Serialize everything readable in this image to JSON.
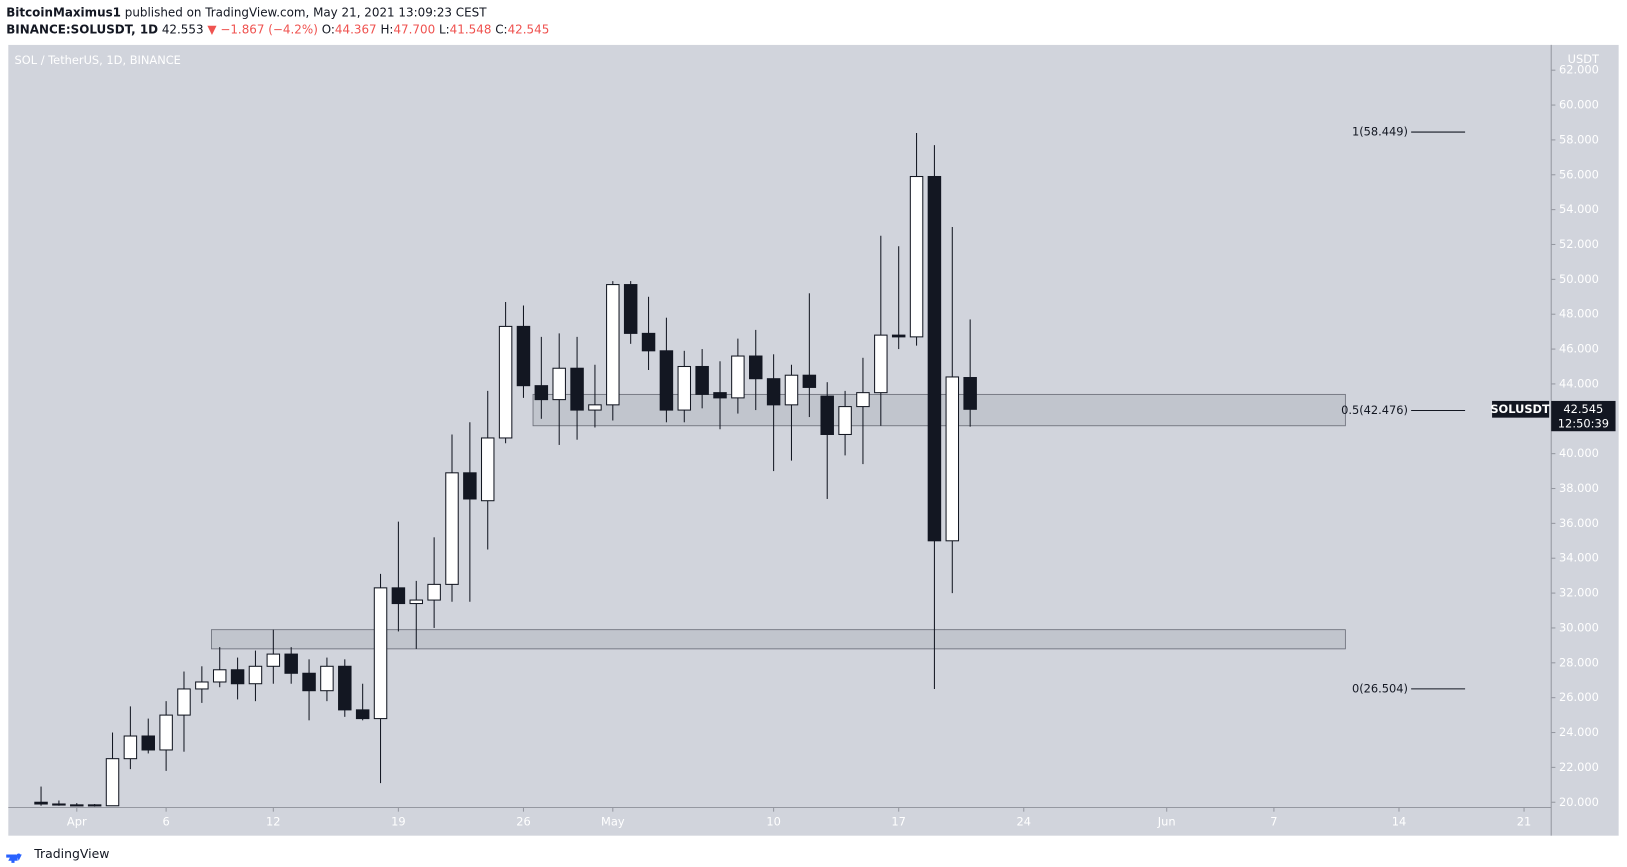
{
  "header": {
    "author": "BitcoinMaximus1",
    "published": "published on TradingView.com, May 21, 2021 13:09:23 CEST",
    "symbol": "BINANCE:SOLUSDT, 1D",
    "last": "42.553",
    "change": "▼ −1.867 (−4.2%)",
    "o_label": "O:",
    "o": "44.367",
    "h_label": "H:",
    "h": "47.700",
    "l_label": "L:",
    "l": "41.548",
    "c_label": "C:",
    "c": "42.545"
  },
  "footer": {
    "brand": "TradingView"
  },
  "chart_data": {
    "type": "candlestick",
    "title": "SOL / TetherUS, 1D, BINANCE",
    "y_axis_label": "USDT",
    "x": [
      "Mar 30",
      "Mar 31",
      "Apr 1",
      "Apr 2",
      "Apr 3",
      "Apr 4",
      "Apr 5",
      "Apr 6",
      "Apr 7",
      "Apr 8",
      "Apr 9",
      "Apr 10",
      "Apr 11",
      "Apr 12",
      "Apr 13",
      "Apr 14",
      "Apr 15",
      "Apr 16",
      "Apr 17",
      "Apr 18",
      "Apr 19",
      "Apr 20",
      "Apr 21",
      "Apr 22",
      "Apr 23",
      "Apr 24",
      "Apr 25",
      "Apr 26",
      "Apr 27",
      "Apr 28",
      "Apr 29",
      "Apr 30",
      "May 1",
      "May 2",
      "May 3",
      "May 4",
      "May 5",
      "May 6",
      "May 7",
      "May 8",
      "May 9",
      "May 10",
      "May 11",
      "May 12",
      "May 13",
      "May 14",
      "May 15",
      "May 16",
      "May 17",
      "May 18",
      "May 19",
      "May 20",
      "May 21"
    ],
    "open": [
      20.0,
      19.9,
      19.85,
      19.8,
      19.8,
      22.5,
      23.8,
      23.0,
      25.0,
      26.5,
      26.9,
      27.6,
      26.8,
      27.8,
      28.5,
      27.4,
      26.4,
      27.8,
      25.3,
      24.8,
      32.3,
      31.4,
      31.6,
      32.5,
      38.9,
      37.3,
      40.9,
      47.3,
      43.9,
      43.1,
      44.9,
      42.5,
      42.8,
      49.7,
      46.9,
      45.9,
      42.5,
      45.0,
      43.5,
      43.2,
      45.6,
      44.3,
      42.8,
      44.5,
      43.3,
      41.1,
      42.7,
      43.5,
      46.8,
      46.7,
      55.9,
      35.0,
      44.367
    ],
    "high": [
      20.9,
      20.1,
      19.95,
      19.9,
      24.0,
      25.5,
      24.8,
      25.8,
      27.5,
      27.8,
      28.9,
      28.3,
      28.7,
      29.9,
      28.9,
      28.2,
      28.3,
      28.2,
      26.8,
      33.1,
      36.1,
      32.7,
      35.2,
      41.1,
      41.8,
      43.6,
      48.7,
      48.5,
      46.7,
      46.9,
      46.7,
      45.1,
      49.9,
      49.9,
      49.0,
      47.8,
      45.9,
      46.0,
      45.3,
      46.6,
      47.1,
      45.7,
      45.1,
      49.2,
      44.1,
      43.6,
      45.5,
      52.5,
      51.9,
      58.4,
      57.7,
      53.0,
      47.7
    ],
    "low": [
      19.8,
      19.8,
      19.8,
      19.75,
      19.8,
      21.9,
      22.8,
      21.8,
      22.9,
      25.7,
      26.6,
      25.9,
      25.8,
      26.8,
      26.8,
      24.7,
      25.8,
      24.9,
      24.7,
      21.1,
      29.8,
      28.8,
      30.0,
      31.5,
      31.5,
      34.5,
      40.6,
      43.2,
      42.0,
      40.5,
      40.8,
      41.5,
      41.9,
      46.3,
      44.8,
      41.8,
      41.8,
      42.6,
      41.4,
      42.3,
      42.5,
      39.0,
      39.6,
      42.1,
      37.4,
      39.9,
      39.4,
      41.6,
      46.0,
      46.2,
      26.5,
      32.0,
      41.548
    ],
    "close": [
      19.9,
      19.9,
      19.85,
      19.85,
      22.5,
      23.8,
      23.0,
      25.0,
      26.5,
      26.9,
      27.6,
      26.8,
      27.8,
      28.5,
      27.4,
      26.4,
      27.8,
      25.3,
      24.8,
      32.3,
      31.4,
      31.6,
      32.5,
      38.9,
      37.4,
      40.9,
      47.3,
      43.9,
      43.1,
      44.9,
      42.5,
      42.8,
      49.7,
      46.9,
      45.9,
      42.5,
      45.0,
      43.4,
      43.2,
      45.6,
      44.3,
      42.8,
      44.5,
      43.8,
      41.1,
      42.7,
      43.5,
      46.8,
      46.7,
      55.9,
      35.0,
      44.4,
      42.545
    ],
    "up_color": "#ffffff",
    "down_color": "#131722",
    "background": "#d1d4dc",
    "ylim": [
      19.7,
      63.45
    ],
    "yticks": [
      {
        "value": 20,
        "label": "20.000"
      },
      {
        "value": 22,
        "label": "22.000"
      },
      {
        "value": 24,
        "label": "24.000"
      },
      {
        "value": 26,
        "label": "26.000"
      },
      {
        "value": 28,
        "label": "28.000"
      },
      {
        "value": 30,
        "label": "30.000"
      },
      {
        "value": 32,
        "label": "32.000"
      },
      {
        "value": 34,
        "label": "34.000"
      },
      {
        "value": 36,
        "label": "36.000"
      },
      {
        "value": 38,
        "label": "38.000"
      },
      {
        "value": 40,
        "label": "40.000"
      },
      {
        "value": 42,
        "label": "42.000"
      },
      {
        "value": 44,
        "label": "44.000"
      },
      {
        "value": 46,
        "label": "46.000"
      },
      {
        "value": 48,
        "label": "48.000"
      },
      {
        "value": 50,
        "label": "50.000"
      },
      {
        "value": 52,
        "label": "52.000"
      },
      {
        "value": 54,
        "label": "54.000"
      },
      {
        "value": 56,
        "label": "56.000"
      },
      {
        "value": 58,
        "label": "58.000"
      },
      {
        "value": 60,
        "label": "60.000"
      },
      {
        "value": 62,
        "label": "62.000"
      }
    ],
    "xticks": [
      {
        "value": "Apr 1",
        "label": "Apr"
      },
      {
        "value": "Apr 6",
        "label": "6"
      },
      {
        "value": "Apr 12",
        "label": "12"
      },
      {
        "value": "Apr 19",
        "label": "19"
      },
      {
        "value": "Apr 26",
        "label": "26"
      },
      {
        "value": "May 1",
        "label": "May"
      },
      {
        "value": "May 10",
        "label": "10"
      },
      {
        "value": "May 17",
        "label": "17"
      },
      {
        "value": "May 24",
        "label": "24"
      },
      {
        "value": "Jun 1",
        "label": "Jun"
      },
      {
        "value": "Jun 7",
        "label": "7"
      },
      {
        "value": "Jun 14",
        "label": "14"
      },
      {
        "value": "Jun 21",
        "label": "21"
      }
    ],
    "zones": [
      {
        "low": 41.6,
        "high": 43.4,
        "start": "Apr 27",
        "end": "Jun 11"
      },
      {
        "low": 28.8,
        "high": 29.9,
        "start": "Apr 9",
        "end": "Jun 11"
      }
    ],
    "fib": [
      {
        "value": 58.449,
        "label": "1(58.449)"
      },
      {
        "value": 42.476,
        "label": "0.5(42.476)"
      },
      {
        "value": 26.504,
        "label": "0(26.504)"
      }
    ],
    "price_tag": {
      "symbol": "SOLUSDT",
      "price": 42.545,
      "countdown": "12:50:39"
    }
  }
}
